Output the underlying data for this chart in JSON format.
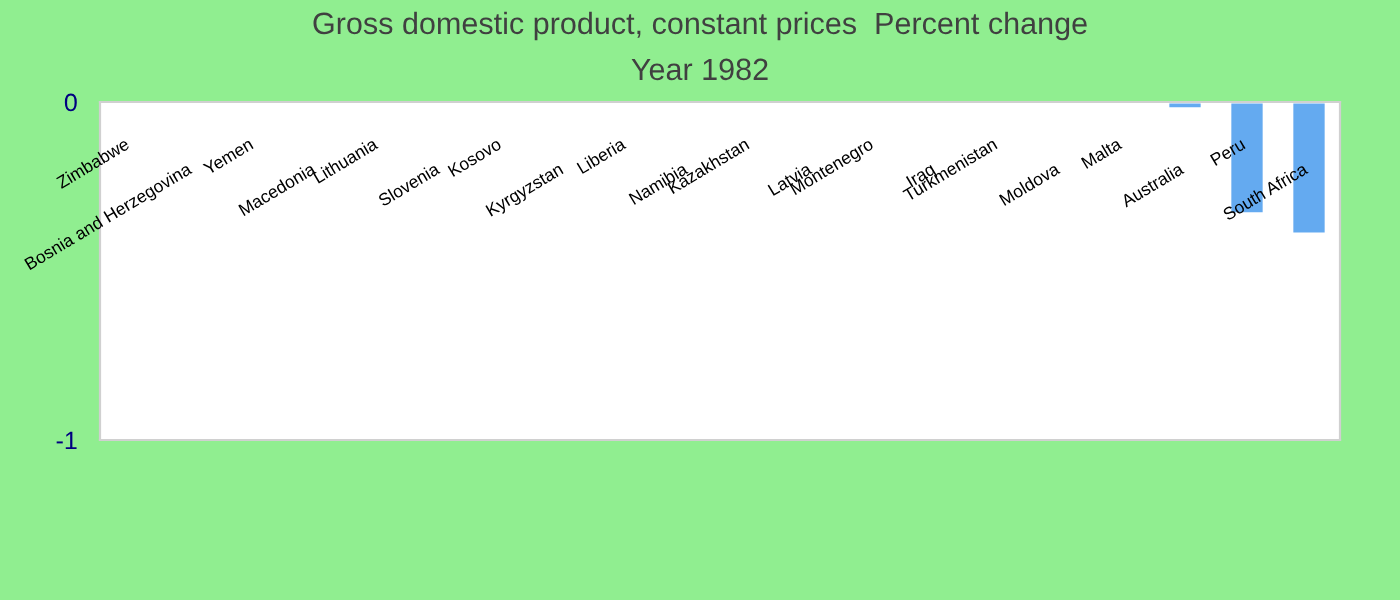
{
  "chart_data": {
    "type": "bar",
    "title": "Gross domestic product, constant prices  Percent change",
    "subtitle": "Year 1982",
    "categories": [
      "Zimbabwe",
      "Bosnia and Herzegovina",
      "Yemen",
      "Macedonia",
      "Lithuania",
      "Slovenia",
      "Kosovo",
      "Kyrgyzstan",
      "Liberia",
      "Namibia",
      "Kazakhstan",
      "Latvia",
      "Montenegro",
      "Iraq",
      "Turkmenistan",
      "Moldova",
      "Malta",
      "Australia",
      "Peru",
      "South Africa"
    ],
    "values": [
      null,
      null,
      null,
      null,
      null,
      null,
      null,
      null,
      null,
      null,
      null,
      null,
      null,
      null,
      null,
      null,
      null,
      -0.02,
      -0.33,
      -0.39
    ],
    "color": "#64aaf0",
    "ylim": [
      -1,
      0
    ],
    "yticks": [
      -1,
      0
    ]
  }
}
